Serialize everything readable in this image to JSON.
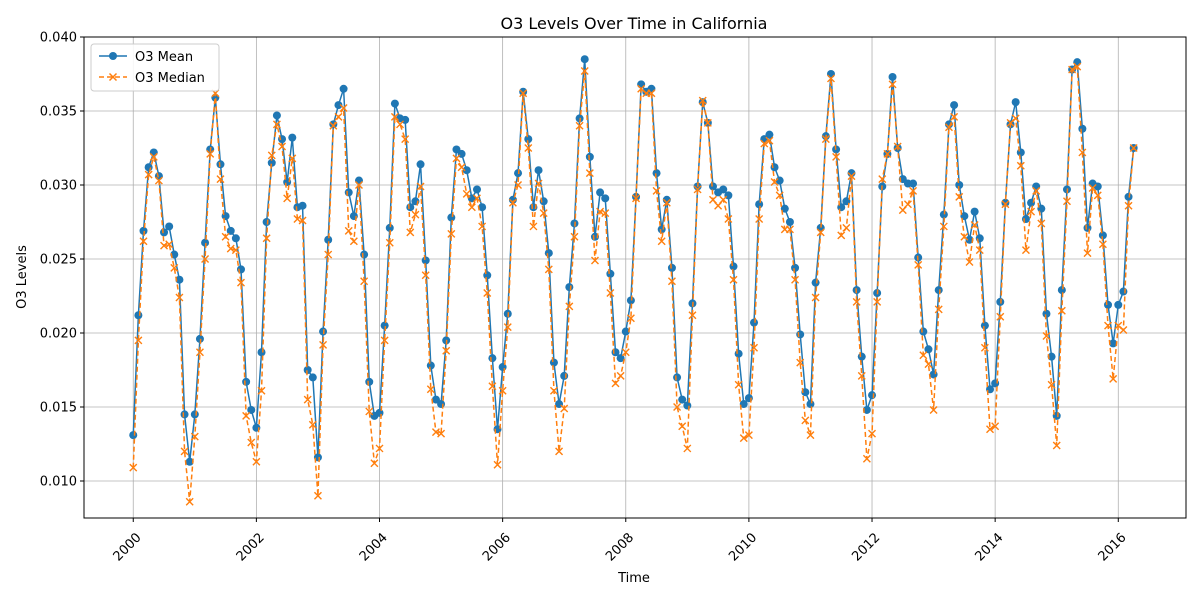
{
  "chart_data": {
    "type": "line",
    "title": "O3 Levels Over Time in California",
    "xlabel": "Time",
    "ylabel": "O3 Levels",
    "xlim": [
      1999.2,
      2017.1
    ],
    "ylim": [
      0.0075,
      0.04
    ],
    "x_ticks": [
      2000,
      2002,
      2004,
      2006,
      2008,
      2010,
      2012,
      2014,
      2016
    ],
    "x_tick_labels": [
      "2000",
      "2002",
      "2004",
      "2006",
      "2008",
      "2010",
      "2012",
      "2014",
      "2016"
    ],
    "y_ticks": [
      0.01,
      0.015,
      0.02,
      0.025,
      0.03,
      0.035,
      0.04
    ],
    "y_tick_labels": [
      "0.010",
      "0.015",
      "0.020",
      "0.025",
      "0.030",
      "0.035",
      "0.040"
    ],
    "grid": true,
    "legend_position": "top-left",
    "x_start": 2000,
    "x_step": 0.08333333,
    "series": [
      {
        "name": "O3 Mean",
        "color": "#1f77b4",
        "marker": "circle",
        "linestyle": "solid",
        "values": [
          0.0131,
          0.0212,
          0.0269,
          0.0312,
          0.0322,
          0.0306,
          0.0268,
          0.0272,
          0.0253,
          0.0236,
          0.0145,
          0.0113,
          0.0145,
          0.0196,
          0.0261,
          0.0324,
          0.0359,
          0.0314,
          0.0279,
          0.0269,
          0.0264,
          0.0243,
          0.0167,
          0.0148,
          0.0136,
          0.0187,
          0.0275,
          0.0315,
          0.0347,
          0.0331,
          0.0302,
          0.0332,
          0.0285,
          0.0286,
          0.0175,
          0.017,
          0.0116,
          0.0201,
          0.0263,
          0.0341,
          0.0354,
          0.0365,
          0.0295,
          0.0279,
          0.0303,
          0.0253,
          0.0167,
          0.0144,
          0.0146,
          0.0205,
          0.0271,
          0.0355,
          0.0345,
          0.0344,
          0.0285,
          0.0289,
          0.0314,
          0.0249,
          0.0178,
          0.0155,
          0.0152,
          0.0195,
          0.0278,
          0.0324,
          0.0321,
          0.031,
          0.0291,
          0.0297,
          0.0285,
          0.0239,
          0.0183,
          0.0135,
          0.0177,
          0.0213,
          0.029,
          0.0308,
          0.0363,
          0.0331,
          0.0285,
          0.031,
          0.0289,
          0.0254,
          0.018,
          0.0152,
          0.0171,
          0.0231,
          0.0274,
          0.0345,
          0.0385,
          0.0319,
          0.0265,
          0.0295,
          0.0291,
          0.024,
          0.0187,
          0.0183,
          0.0201,
          0.0222,
          0.0292,
          0.0368,
          0.0363,
          0.0365,
          0.0308,
          0.027,
          0.029,
          0.0244,
          0.017,
          0.0155,
          0.0151,
          0.022,
          0.0299,
          0.0356,
          0.0342,
          0.0299,
          0.0295,
          0.0297,
          0.0293,
          0.0245,
          0.0186,
          0.0152,
          0.0156,
          0.0207,
          0.0287,
          0.0331,
          0.0334,
          0.0312,
          0.0303,
          0.0284,
          0.0275,
          0.0244,
          0.0199,
          0.016,
          0.0152,
          0.0234,
          0.0271,
          0.0333,
          0.0375,
          0.0324,
          0.0285,
          0.0289,
          0.0308,
          0.0229,
          0.0184,
          0.0148,
          0.0158,
          0.0227,
          0.0299,
          0.0321,
          0.0373,
          0.0325,
          0.0304,
          0.0301,
          0.0301,
          0.0251,
          0.0201,
          0.0189,
          0.0172,
          0.0229,
          0.028,
          0.0341,
          0.0354,
          0.03,
          0.0279,
          0.0263,
          0.0282,
          0.0264,
          0.0205,
          0.0162,
          0.0166,
          0.0221,
          0.0288,
          0.0341,
          0.0356,
          0.0322,
          0.0277,
          0.0288,
          0.0299,
          0.0284,
          0.0213,
          0.0184,
          0.0144,
          0.0229,
          0.0297,
          0.0378,
          0.0383,
          0.0338,
          0.0271,
          0.0301,
          0.0299,
          0.0266,
          0.0219,
          0.0193,
          0.0219,
          0.0228,
          0.0292,
          0.0325
        ]
      },
      {
        "name": "O3 Median",
        "color": "#ff7f0e",
        "marker": "x",
        "linestyle": "dashed",
        "values": [
          0.0109,
          0.0195,
          0.0262,
          0.0307,
          0.0319,
          0.0303,
          0.0259,
          0.026,
          0.0244,
          0.0224,
          0.012,
          0.0086,
          0.013,
          0.0187,
          0.025,
          0.0321,
          0.0362,
          0.0304,
          0.0265,
          0.0257,
          0.0256,
          0.0234,
          0.0144,
          0.0126,
          0.0113,
          0.0161,
          0.0264,
          0.032,
          0.0341,
          0.0326,
          0.0291,
          0.0318,
          0.0277,
          0.0276,
          0.0155,
          0.0138,
          0.009,
          0.0192,
          0.0253,
          0.034,
          0.0346,
          0.0352,
          0.0269,
          0.0262,
          0.03,
          0.0235,
          0.0147,
          0.0112,
          0.0122,
          0.0195,
          0.0261,
          0.0346,
          0.0341,
          0.0331,
          0.0268,
          0.028,
          0.0299,
          0.0239,
          0.0162,
          0.0133,
          0.0132,
          0.0188,
          0.0267,
          0.0318,
          0.0312,
          0.0294,
          0.0285,
          0.0291,
          0.0272,
          0.0227,
          0.0164,
          0.0111,
          0.0161,
          0.0204,
          0.0288,
          0.03,
          0.0362,
          0.0325,
          0.0272,
          0.0301,
          0.0281,
          0.0243,
          0.0161,
          0.012,
          0.0149,
          0.0218,
          0.0265,
          0.034,
          0.0377,
          0.0308,
          0.0249,
          0.0282,
          0.0281,
          0.0227,
          0.0166,
          0.0171,
          0.0187,
          0.021,
          0.0291,
          0.0365,
          0.0362,
          0.0362,
          0.0296,
          0.0262,
          0.0288,
          0.0235,
          0.015,
          0.0137,
          0.0122,
          0.0212,
          0.0297,
          0.0357,
          0.0342,
          0.029,
          0.0286,
          0.029,
          0.0277,
          0.0236,
          0.0165,
          0.0129,
          0.0131,
          0.019,
          0.0277,
          0.0328,
          0.033,
          0.0302,
          0.0293,
          0.027,
          0.027,
          0.0236,
          0.018,
          0.0141,
          0.0131,
          0.0224,
          0.0268,
          0.0331,
          0.0372,
          0.0319,
          0.0266,
          0.0271,
          0.0306,
          0.0221,
          0.0171,
          0.0115,
          0.0132,
          0.0221,
          0.0304,
          0.0321,
          0.0368,
          0.0326,
          0.0283,
          0.0287,
          0.0296,
          0.0246,
          0.0185,
          0.0179,
          0.0148,
          0.0216,
          0.0272,
          0.0339,
          0.0346,
          0.0292,
          0.0265,
          0.0248,
          0.0273,
          0.0256,
          0.019,
          0.0135,
          0.0137,
          0.0211,
          0.0287,
          0.0342,
          0.0345,
          0.0313,
          0.0256,
          0.0282,
          0.0296,
          0.0274,
          0.0198,
          0.0165,
          0.0124,
          0.0215,
          0.0289,
          0.0378,
          0.038,
          0.0322,
          0.0254,
          0.0298,
          0.0293,
          0.026,
          0.0205,
          0.0169,
          0.0205,
          0.0202,
          0.0286,
          0.0325
        ]
      }
    ]
  }
}
